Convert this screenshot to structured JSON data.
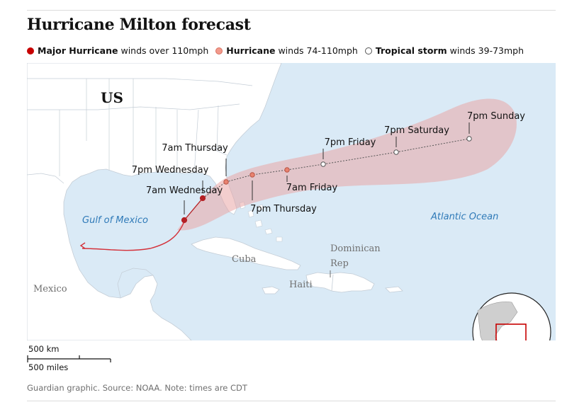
{
  "title": "Hurricane Milton forecast",
  "legend": [
    {
      "name": "Major Hurricane",
      "desc": "winds over 110mph",
      "color": "#c70000",
      "stroke": "#c70000"
    },
    {
      "name": "Hurricane",
      "desc": "winds 74-110mph",
      "color": "#f29a8c",
      "stroke": "#d9705f"
    },
    {
      "name": "Tropical storm",
      "desc": "winds 39-73mph",
      "color": "#ffffff",
      "stroke": "#555555"
    }
  ],
  "map": {
    "region_labels": {
      "us": "US",
      "gulf": "Gulf of Mexico",
      "atlantic": "Atlantic Ocean",
      "mexico": "Mexico",
      "cuba": "Cuba",
      "haiti": "Haiti",
      "dominican_line1": "Dominican",
      "dominican_line2": "Rep"
    },
    "track_points": [
      {
        "label": "7am Wednesday",
        "category": "major"
      },
      {
        "label": "7pm Wednesday",
        "category": "major"
      },
      {
        "label": "7am Thursday",
        "category": "hurricane"
      },
      {
        "label": "7pm Thursday",
        "category": "hurricane"
      },
      {
        "label": "7am Friday",
        "category": "hurricane"
      },
      {
        "label": "7pm Friday",
        "category": "tropical"
      },
      {
        "label": "7pm Saturday",
        "category": "tropical"
      },
      {
        "label": "7pm Sunday",
        "category": "tropical"
      }
    ],
    "colors": {
      "ocean": "#daeaf6",
      "land": "#ffffff",
      "border": "#c4cdd6",
      "cone": "#e9a5a5",
      "past_track": "#d4313a",
      "water_label": "#2f7ab8",
      "place_label": "#707070"
    }
  },
  "scale": {
    "km_label": "500 km",
    "miles_label": "500 miles"
  },
  "source": "Guardian graphic. Source: NOAA. Note: times are CDT"
}
